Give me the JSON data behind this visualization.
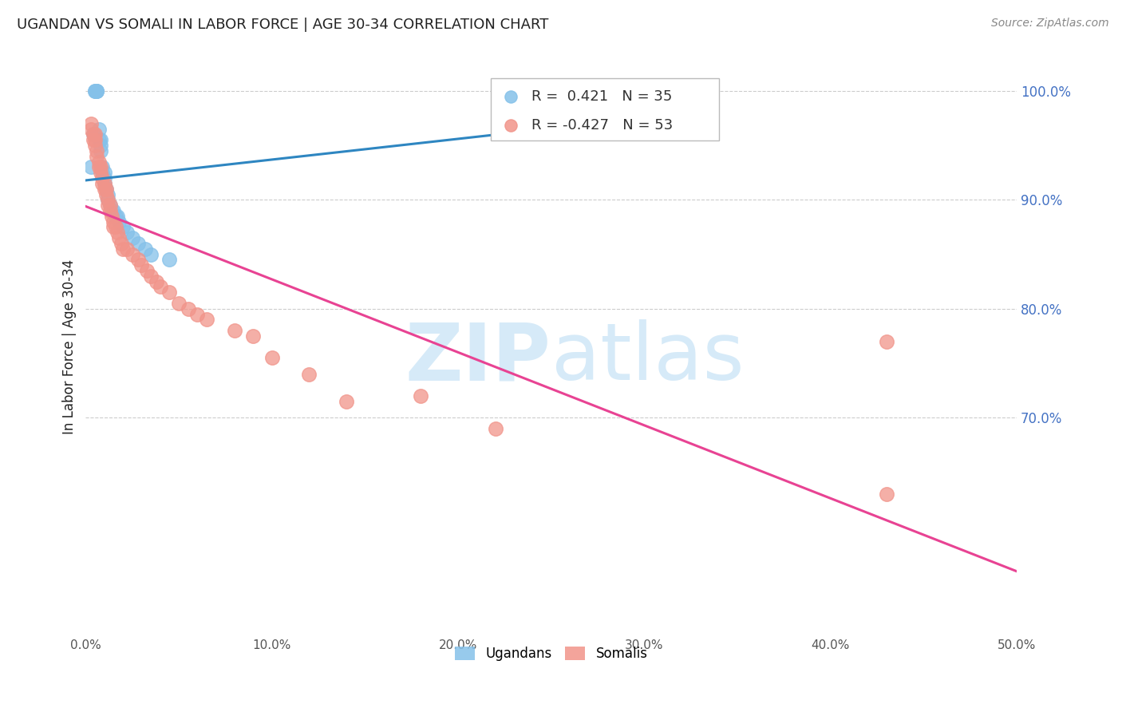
{
  "title": "UGANDAN VS SOMALI IN LABOR FORCE | AGE 30-34 CORRELATION CHART",
  "source": "Source: ZipAtlas.com",
  "ylabel": "In Labor Force | Age 30-34",
  "xlim": [
    0.0,
    0.5
  ],
  "ylim": [
    0.5,
    1.03
  ],
  "ytick_right_values": [
    1.0,
    0.9,
    0.8,
    0.7
  ],
  "xtick_values": [
    0.0,
    0.1,
    0.2,
    0.3,
    0.4,
    0.5
  ],
  "legend_r": [
    "R =  0.421",
    "R = -0.427"
  ],
  "legend_n": [
    "N = 35",
    "N = 53"
  ],
  "ugandan_color": "#85C1E9",
  "somali_color": "#F1948A",
  "ugandan_line_color": "#2E86C1",
  "somali_line_color": "#E84393",
  "background_color": "#FFFFFF",
  "watermark_color": "#D6EAF8",
  "title_color": "#222222",
  "right_tick_color": "#4472C4",
  "grid_color": "#CCCCCC",
  "ugandan_x": [
    0.003,
    0.004,
    0.005,
    0.005,
    0.006,
    0.006,
    0.006,
    0.007,
    0.007,
    0.008,
    0.008,
    0.008,
    0.009,
    0.009,
    0.01,
    0.01,
    0.01,
    0.011,
    0.012,
    0.012,
    0.013,
    0.014,
    0.015,
    0.016,
    0.017,
    0.018,
    0.02,
    0.022,
    0.025,
    0.028,
    0.032,
    0.035,
    0.045,
    0.32,
    0.32
  ],
  "ugandan_y": [
    0.93,
    0.96,
    1.0,
    1.0,
    1.0,
    1.0,
    1.0,
    0.965,
    0.955,
    0.955,
    0.95,
    0.945,
    0.93,
    0.925,
    0.925,
    0.92,
    0.915,
    0.91,
    0.905,
    0.9,
    0.895,
    0.89,
    0.89,
    0.885,
    0.885,
    0.88,
    0.875,
    0.87,
    0.865,
    0.86,
    0.855,
    0.85,
    0.845,
    1.0,
    1.0
  ],
  "somali_x": [
    0.003,
    0.003,
    0.004,
    0.004,
    0.005,
    0.005,
    0.005,
    0.006,
    0.006,
    0.007,
    0.007,
    0.008,
    0.008,
    0.009,
    0.009,
    0.01,
    0.01,
    0.011,
    0.011,
    0.012,
    0.012,
    0.013,
    0.013,
    0.014,
    0.015,
    0.015,
    0.016,
    0.017,
    0.018,
    0.019,
    0.02,
    0.022,
    0.025,
    0.028,
    0.03,
    0.033,
    0.035,
    0.038,
    0.04,
    0.045,
    0.05,
    0.055,
    0.06,
    0.065,
    0.08,
    0.09,
    0.1,
    0.12,
    0.14,
    0.18,
    0.22,
    0.43,
    0.43
  ],
  "somali_y": [
    0.97,
    0.965,
    0.96,
    0.955,
    0.96,
    0.955,
    0.95,
    0.945,
    0.94,
    0.935,
    0.93,
    0.93,
    0.925,
    0.92,
    0.915,
    0.915,
    0.91,
    0.91,
    0.905,
    0.9,
    0.895,
    0.895,
    0.89,
    0.885,
    0.88,
    0.875,
    0.875,
    0.87,
    0.865,
    0.86,
    0.855,
    0.855,
    0.85,
    0.845,
    0.84,
    0.835,
    0.83,
    0.825,
    0.82,
    0.815,
    0.805,
    0.8,
    0.795,
    0.79,
    0.78,
    0.775,
    0.755,
    0.74,
    0.715,
    0.72,
    0.69,
    0.77,
    0.63
  ]
}
